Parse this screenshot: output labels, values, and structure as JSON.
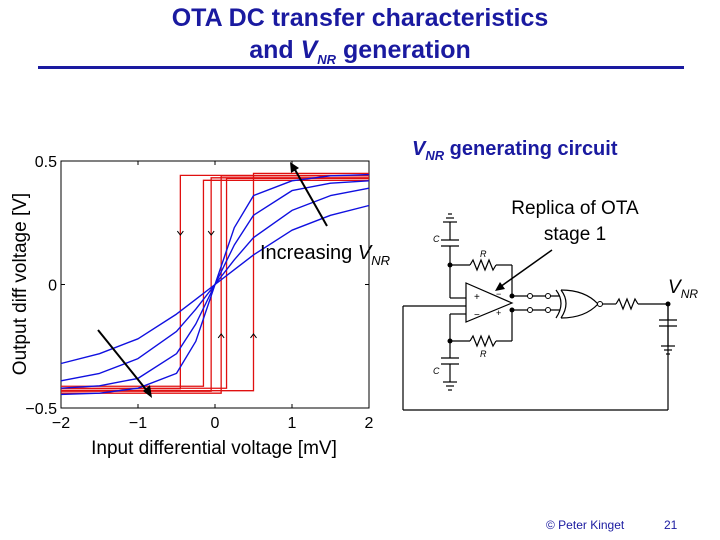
{
  "slide": {
    "title_line1": "OTA DC transfer characteristics",
    "title_line2_pre": "and ",
    "title_line2_var": "V",
    "title_line2_sub": "NR",
    "title_line2_post": " generation",
    "footer_copyright": "© Peter Kinget",
    "page_number": "21"
  },
  "circuit": {
    "heading_var": "V",
    "heading_sub": "NR",
    "heading_text": " generating circuit",
    "replica_label_line1": "Replica of OTA",
    "replica_label_line2": "stage 1",
    "output_var": "V",
    "output_sub": "NR",
    "cap_label": "C",
    "res_label": "R",
    "plus_sign": "+",
    "minus_sign": "−"
  },
  "chart_data": {
    "type": "line",
    "xlabel": "Input differential voltage [mV]",
    "ylabel": "Output diff voltage [V]",
    "xlim": [
      -2,
      2
    ],
    "ylim": [
      -0.5,
      0.5
    ],
    "xticks": [
      "−2",
      "−1",
      "0",
      "1",
      "2"
    ],
    "yticks": [
      "−0.5",
      "0",
      "0.5"
    ],
    "grid": false,
    "annotation_pre": "Increasing ",
    "annotation_var": "V",
    "annotation_sub": "NR",
    "colors": {
      "sigmoid": "#1010e0",
      "hysteresis": "#e01010",
      "arrow": "#000000"
    },
    "sigmoid_series": [
      {
        "x": [
          -2.0,
          -1.5,
          -1.0,
          -0.5,
          -0.25,
          0.0,
          0.25,
          0.5,
          1.0,
          1.5,
          2.0
        ],
        "y": [
          -0.445,
          -0.44,
          -0.42,
          -0.36,
          -0.23,
          0.0,
          0.23,
          0.36,
          0.42,
          0.44,
          0.445
        ]
      },
      {
        "x": [
          -2.0,
          -1.5,
          -1.0,
          -0.5,
          -0.25,
          0.0,
          0.25,
          0.5,
          1.0,
          1.5,
          2.0
        ],
        "y": [
          -0.42,
          -0.41,
          -0.38,
          -0.28,
          -0.16,
          0.0,
          0.16,
          0.28,
          0.38,
          0.41,
          0.42
        ]
      },
      {
        "x": [
          -2.0,
          -1.5,
          -1.0,
          -0.5,
          -0.25,
          0.0,
          0.25,
          0.5,
          1.0,
          1.5,
          2.0
        ],
        "y": [
          -0.39,
          -0.36,
          -0.3,
          -0.19,
          -0.1,
          0.0,
          0.1,
          0.19,
          0.3,
          0.36,
          0.39
        ]
      },
      {
        "x": [
          -2.0,
          -1.5,
          -1.0,
          -0.5,
          -0.25,
          0.0,
          0.25,
          0.5,
          1.0,
          1.5,
          2.0
        ],
        "y": [
          -0.32,
          -0.28,
          -0.22,
          -0.12,
          -0.06,
          0.0,
          0.06,
          0.12,
          0.22,
          0.28,
          0.32
        ]
      }
    ],
    "hysteresis_loops": [
      {
        "x_low": -0.45,
        "x_high": 0.5,
        "y_low": -0.43,
        "y_high": 0.45
      },
      {
        "x_low": -0.05,
        "x_high": 0.08,
        "y_low": -0.44,
        "y_high": 0.44
      },
      {
        "x_low": -0.15,
        "x_high": 0.15,
        "y_low": -0.42,
        "y_high": 0.43
      }
    ]
  }
}
